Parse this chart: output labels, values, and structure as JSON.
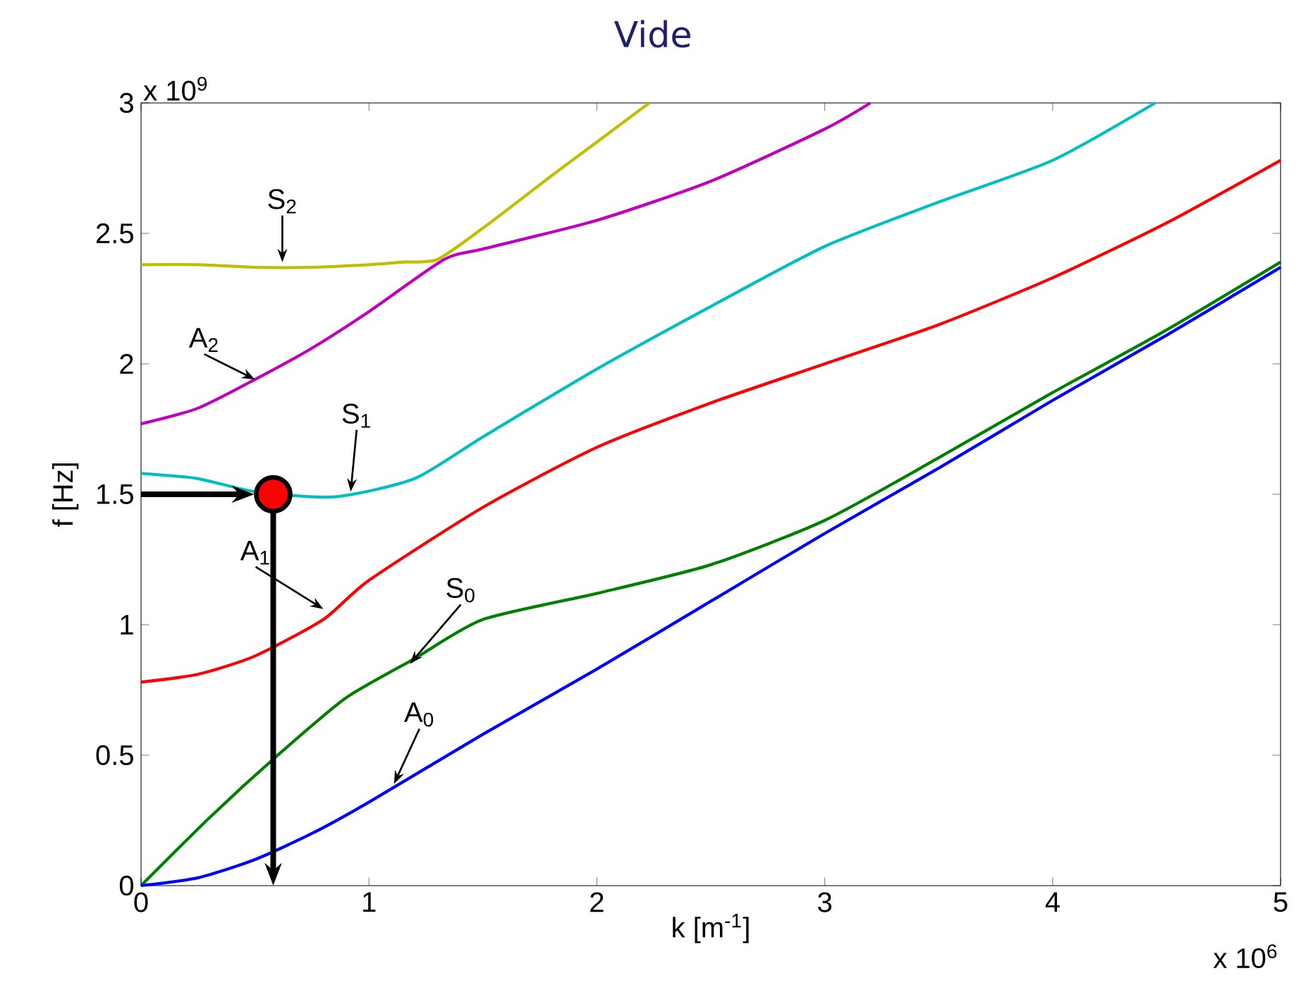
{
  "chart_data": {
    "type": "line",
    "title": "Vide",
    "xlabel": "k [m$^{-1}$]",
    "ylabel": "f [Hz]",
    "xlim": [
      0,
      5
    ],
    "ylim": [
      0,
      3
    ],
    "xticks": [
      0,
      1,
      2,
      3,
      4,
      5
    ],
    "yticks": [
      0,
      0.5,
      1,
      1.5,
      2,
      2.5,
      3
    ],
    "grid": false,
    "marker": "none",
    "line_style": "solid",
    "series": [
      {
        "color": "#bfbf00",
        "x": [
          0,
          0.25,
          0.5,
          0.75,
          1,
          1.15,
          1.3,
          1.5,
          1.8,
          2.0,
          2.23
        ],
        "values": [
          2.38,
          2.38,
          2.37,
          2.37,
          2.38,
          2.39,
          2.4,
          2.52,
          2.72,
          2.85,
          3.0
        ]
      },
      {
        "color": "#bf00bf",
        "x": [
          0,
          0.25,
          0.5,
          0.75,
          1,
          1.33,
          1.5,
          2,
          2.5,
          3,
          3.2
        ],
        "values": [
          1.77,
          1.83,
          1.94,
          2.06,
          2.2,
          2.4,
          2.44,
          2.55,
          2.7,
          2.9,
          3.0
        ]
      },
      {
        "color": "#00bfbf",
        "x": [
          0,
          0.25,
          0.5,
          0.85,
          1.2,
          1.5,
          2,
          2.5,
          3,
          3.5,
          4,
          4.45
        ],
        "values": [
          1.58,
          1.56,
          1.51,
          1.49,
          1.56,
          1.72,
          1.98,
          2.22,
          2.45,
          2.62,
          2.78,
          3.0
        ]
      },
      {
        "color": "#ff0000",
        "x": [
          0,
          0.25,
          0.5,
          0.8,
          1,
          1.5,
          2,
          2.5,
          3,
          3.5,
          4,
          4.5,
          5
        ],
        "values": [
          0.78,
          0.81,
          0.88,
          1.02,
          1.17,
          1.45,
          1.68,
          1.85,
          2.0,
          2.15,
          2.33,
          2.54,
          2.78
        ]
      },
      {
        "color": "#008000",
        "x": [
          0,
          0.3,
          0.6,
          0.9,
          1.2,
          1.5,
          2,
          2.5,
          3,
          3.5,
          4,
          4.5,
          5
        ],
        "values": [
          0,
          0.26,
          0.5,
          0.72,
          0.87,
          1.02,
          1.12,
          1.23,
          1.4,
          1.64,
          1.89,
          2.13,
          2.39
        ]
      },
      {
        "color": "#0000ff",
        "x": [
          0,
          0.25,
          0.5,
          0.75,
          1,
          1.5,
          2,
          2.5,
          3,
          3.5,
          4,
          4.5,
          5
        ],
        "values": [
          0,
          0.03,
          0.1,
          0.2,
          0.32,
          0.58,
          0.83,
          1.09,
          1.35,
          1.6,
          1.86,
          2.11,
          2.37
        ]
      },
      {
        "type": "scatter",
        "marker": "circle",
        "color": "#ff0000",
        "x": [
          0.58
        ],
        "values": [
          1.5
        ]
      }
    ],
    "annotations": [
      {
        "text": "S$_{2}$",
        "x": 0.62,
        "y": 2.39
      },
      {
        "text": "A$_{2}$",
        "x": 0.5,
        "y": 1.94
      },
      {
        "text": "S$_{1}$",
        "x": 0.92,
        "y": 1.51
      },
      {
        "text": "A$_{1}$",
        "x": 0.8,
        "y": 1.06
      },
      {
        "text": "S$_{0}$",
        "x": 1.18,
        "y": 0.85
      },
      {
        "text": "A$_{0}$",
        "x": 1.11,
        "y": 0.39
      },
      "x 10$^{9}$",
      "x 10$^{6}$"
    ]
  }
}
